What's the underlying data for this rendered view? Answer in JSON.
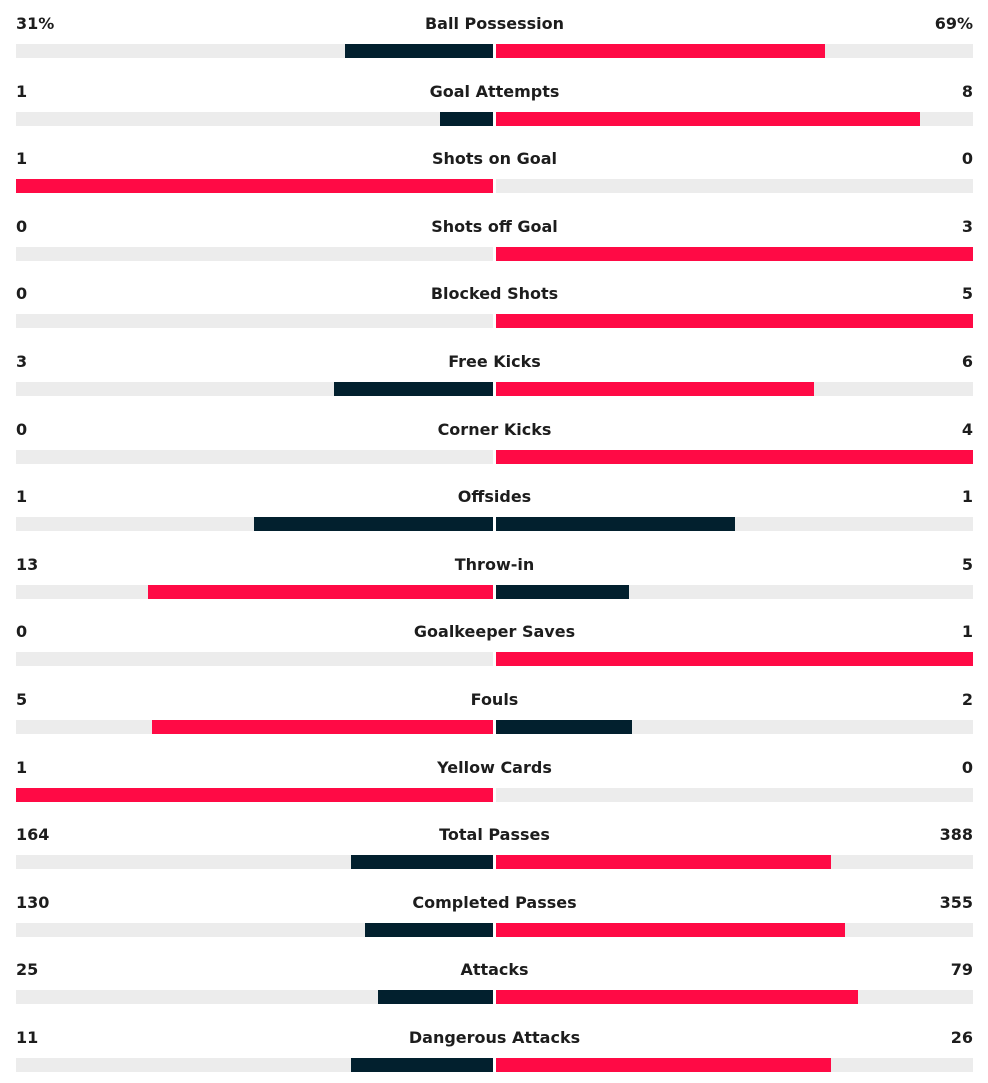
{
  "colors": {
    "leader": "#ff0a45",
    "trailer": "#02202e",
    "track": "#ececec"
  },
  "stats": [
    {
      "label": "Ball Possession",
      "home": "31%",
      "away": "69%",
      "home_value": 31,
      "away_value": 69
    },
    {
      "label": "Goal Attempts",
      "home": "1",
      "away": "8",
      "home_value": 1,
      "away_value": 8
    },
    {
      "label": "Shots on Goal",
      "home": "1",
      "away": "0",
      "home_value": 1,
      "away_value": 0
    },
    {
      "label": "Shots off Goal",
      "home": "0",
      "away": "3",
      "home_value": 0,
      "away_value": 3
    },
    {
      "label": "Blocked Shots",
      "home": "0",
      "away": "5",
      "home_value": 0,
      "away_value": 5
    },
    {
      "label": "Free Kicks",
      "home": "3",
      "away": "6",
      "home_value": 3,
      "away_value": 6
    },
    {
      "label": "Corner Kicks",
      "home": "0",
      "away": "4",
      "home_value": 0,
      "away_value": 4
    },
    {
      "label": "Offsides",
      "home": "1",
      "away": "1",
      "home_value": 1,
      "away_value": 1
    },
    {
      "label": "Throw-in",
      "home": "13",
      "away": "5",
      "home_value": 13,
      "away_value": 5
    },
    {
      "label": "Goalkeeper Saves",
      "home": "0",
      "away": "1",
      "home_value": 0,
      "away_value": 1
    },
    {
      "label": "Fouls",
      "home": "5",
      "away": "2",
      "home_value": 5,
      "away_value": 2
    },
    {
      "label": "Yellow Cards",
      "home": "1",
      "away": "0",
      "home_value": 1,
      "away_value": 0
    },
    {
      "label": "Total Passes",
      "home": "164",
      "away": "388",
      "home_value": 164,
      "away_value": 388
    },
    {
      "label": "Completed Passes",
      "home": "130",
      "away": "355",
      "home_value": 130,
      "away_value": 355
    },
    {
      "label": "Attacks",
      "home": "25",
      "away": "79",
      "home_value": 25,
      "away_value": 79
    },
    {
      "label": "Dangerous Attacks",
      "home": "11",
      "away": "26",
      "home_value": 11,
      "away_value": 26
    }
  ]
}
